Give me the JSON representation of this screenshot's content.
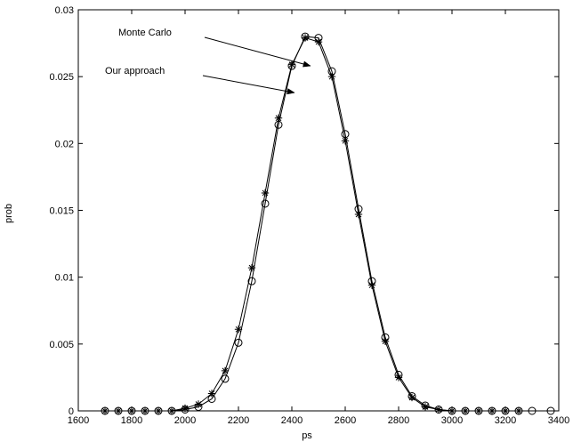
{
  "chart_data": {
    "type": "line",
    "title": "",
    "xlabel": "ps",
    "ylabel": "prob",
    "xlim": [
      1600,
      3400
    ],
    "ylim": [
      0,
      0.03
    ],
    "xticks": [
      "1600",
      "1800",
      "2000",
      "2200",
      "2400",
      "2600",
      "2800",
      "3000",
      "3200",
      "3400"
    ],
    "yticks": [
      "0",
      "0.005",
      "0.01",
      "0.015",
      "0.02",
      "0.025",
      "0.03"
    ],
    "grid": false,
    "series": [
      {
        "name": "Monte Carlo",
        "marker": "circle",
        "line": true,
        "color": "#000000",
        "x": [
          1700,
          1750,
          1800,
          1850,
          1900,
          1950,
          2000,
          2050,
          2100,
          2150,
          2200,
          2250,
          2300,
          2350,
          2400,
          2450,
          2500,
          2550,
          2600,
          2650,
          2700,
          2750,
          2800,
          2850,
          2900,
          2950,
          3000,
          3050,
          3100,
          3150,
          3200,
          3250,
          3300,
          3370
        ],
        "y": [
          0.0,
          0.0,
          0.0,
          0.0,
          0.0,
          0.0,
          0.0001,
          0.0003,
          0.0009,
          0.0024,
          0.0051,
          0.0097,
          0.0155,
          0.0214,
          0.0258,
          0.028,
          0.0279,
          0.0254,
          0.0207,
          0.0151,
          0.0097,
          0.0055,
          0.0027,
          0.0011,
          0.0004,
          0.0001,
          0.0,
          0.0,
          0.0,
          0.0,
          0.0,
          0.0,
          0.0,
          0.0
        ]
      },
      {
        "name": "Our approach",
        "marker": "star",
        "line": true,
        "color": "#000000",
        "x": [
          1700,
          1750,
          1800,
          1850,
          1900,
          1950,
          2000,
          2050,
          2100,
          2150,
          2200,
          2250,
          2300,
          2350,
          2400,
          2450,
          2500,
          2550,
          2600,
          2650,
          2700,
          2750,
          2800,
          2850,
          2900,
          2950,
          3000,
          3050,
          3100,
          3150,
          3200,
          3250
        ],
        "y": [
          0.0,
          0.0,
          0.0,
          0.0,
          0.0,
          0.0,
          0.0002,
          0.0005,
          0.0013,
          0.003,
          0.0061,
          0.0107,
          0.0163,
          0.0219,
          0.0259,
          0.0279,
          0.0276,
          0.025,
          0.0202,
          0.0147,
          0.0094,
          0.0052,
          0.0025,
          0.001,
          0.0003,
          0.0001,
          0.0,
          0.0,
          0.0,
          0.0,
          0.0,
          0.0
        ]
      }
    ],
    "annotations": [
      {
        "text": "Monte Carlo",
        "arrow_x": 2470,
        "arrow_y": 0.0258
      },
      {
        "text": "Our approach",
        "arrow_x": 2410,
        "arrow_y": 0.0238
      }
    ]
  }
}
